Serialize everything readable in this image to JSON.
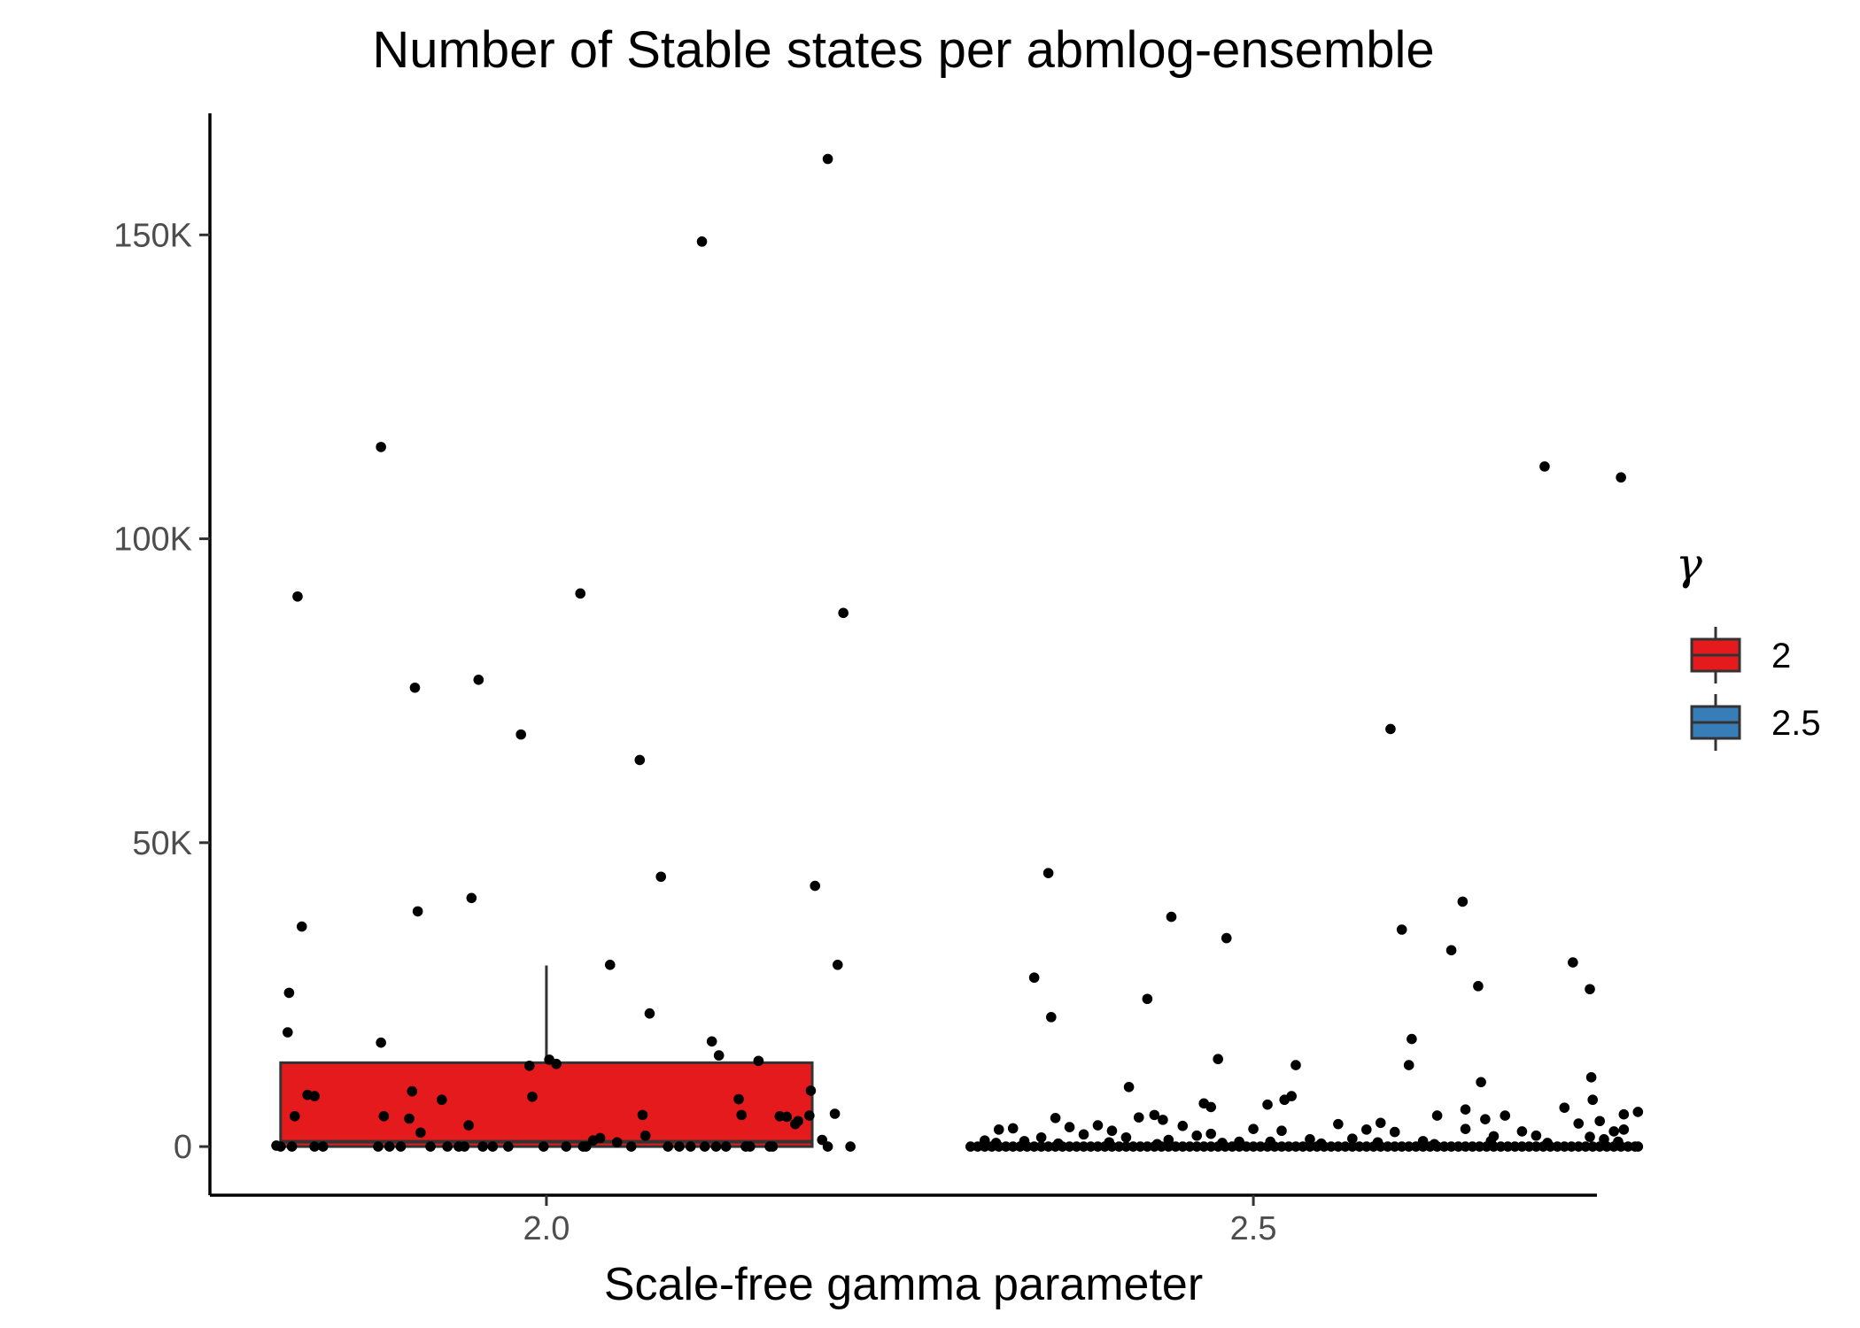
{
  "chart_data": {
    "type": "box",
    "title": "Number of Stable states per abmlog-ensemble",
    "xlabel": "Scale-free gamma parameter",
    "ylabel": "",
    "x_ticks": [
      "2.0",
      "2.5"
    ],
    "x_tick_values": [
      2.0,
      2.5
    ],
    "xlim": [
      1.762,
      2.743
    ],
    "y_ticks": [
      "0",
      "50K",
      "100K",
      "150K"
    ],
    "y_tick_values": [
      0,
      50000,
      100000,
      150000
    ],
    "ylim": [
      -8000,
      170000
    ],
    "grid": false,
    "legend": {
      "title": "γ",
      "position": "right",
      "entries": [
        {
          "label": "2",
          "color": "#e41a1c"
        },
        {
          "label": "2.5",
          "color": "#377eb8"
        }
      ]
    },
    "boxes": [
      {
        "group": "2",
        "x": 2.0,
        "q1": 0,
        "median": 800,
        "q3": 13800,
        "whisker_low": 0,
        "whisker_high": 29800,
        "color": "#e41a1c"
      },
      {
        "group": "2.5",
        "x": 2.5,
        "q1": 0,
        "median": 0,
        "q3": 0,
        "whisker_low": 0,
        "whisker_high": 0,
        "color": "#377eb8"
      }
    ],
    "series": [
      {
        "group": "2",
        "points": [
          [
            1.809,
            162
          ],
          [
            1.817,
            18800
          ],
          [
            1.818,
            25300
          ],
          [
            1.824,
            90500
          ],
          [
            1.827,
            36200
          ],
          [
            1.822,
            5000
          ],
          [
            1.831,
            8500
          ],
          [
            1.836,
            8300
          ],
          [
            1.842,
            0
          ],
          [
            1.812,
            0
          ],
          [
            1.82,
            0
          ],
          [
            1.836,
            0
          ],
          [
            1.883,
            115100
          ],
          [
            1.883,
            17100
          ],
          [
            1.885,
            5000
          ],
          [
            1.881,
            0
          ],
          [
            1.889,
            0
          ],
          [
            1.897,
            0
          ],
          [
            1.907,
            75500
          ],
          [
            1.909,
            38700
          ],
          [
            1.905,
            9100
          ],
          [
            1.903,
            4600
          ],
          [
            1.911,
            2300
          ],
          [
            1.918,
            0
          ],
          [
            1.926,
            7700
          ],
          [
            1.938,
            0
          ],
          [
            1.945,
            3500
          ],
          [
            1.947,
            40900
          ],
          [
            1.952,
            76800
          ],
          [
            1.955,
            0
          ],
          [
            1.962,
            0
          ],
          [
            1.942,
            0
          ],
          [
            1.982,
            67800
          ],
          [
            1.988,
            13300
          ],
          [
            1.99,
            8200
          ],
          [
            1.998,
            0
          ],
          [
            2.002,
            14300
          ],
          [
            2.007,
            13600
          ],
          [
            2.024,
            91000
          ],
          [
            2.026,
            0
          ],
          [
            2.028,
            0
          ],
          [
            2.033,
            1000
          ],
          [
            2.038,
            1400
          ],
          [
            2.045,
            29900
          ],
          [
            2.05,
            700
          ],
          [
            2.066,
            63600
          ],
          [
            2.068,
            5200
          ],
          [
            2.07,
            1800
          ],
          [
            2.073,
            21900
          ],
          [
            2.081,
            44400
          ],
          [
            2.086,
            0
          ],
          [
            2.094,
            0
          ],
          [
            2.11,
            148900
          ],
          [
            2.112,
            0
          ],
          [
            2.117,
            17300
          ],
          [
            2.122,
            15000
          ],
          [
            2.127,
            0
          ],
          [
            2.136,
            7800
          ],
          [
            2.138,
            5200
          ],
          [
            2.141,
            0
          ],
          [
            2.15,
            14100
          ],
          [
            2.158,
            0
          ],
          [
            2.165,
            5000
          ],
          [
            2.17,
            4900
          ],
          [
            2.176,
            3700
          ],
          [
            2.186,
            5100
          ],
          [
            2.187,
            9200
          ],
          [
            2.19,
            42900
          ],
          [
            2.195,
            1100
          ],
          [
            2.199,
            0
          ],
          [
            2.204,
            5400
          ],
          [
            2.206,
            29900
          ],
          [
            2.21,
            87800
          ],
          [
            2.215,
            0
          ],
          [
            2.199,
            162500
          ],
          [
            2.178,
            4200
          ],
          [
            2.16,
            0
          ],
          [
            2.144,
            0
          ],
          [
            2.12,
            0
          ],
          [
            2.102,
            0
          ],
          [
            2.06,
            0
          ],
          [
            2.014,
            0
          ],
          [
            1.973,
            0
          ],
          [
            1.93,
            0
          ]
        ]
      },
      {
        "group": "2.5",
        "points": [
          [
            2.345,
            27800
          ],
          [
            2.355,
            45000
          ],
          [
            2.357,
            21300
          ],
          [
            2.425,
            24300
          ],
          [
            2.412,
            9800
          ],
          [
            2.43,
            5200
          ],
          [
            2.436,
            4400
          ],
          [
            2.419,
            4800
          ],
          [
            2.442,
            37800
          ],
          [
            2.465,
            7100
          ],
          [
            2.47,
            6500
          ],
          [
            2.475,
            14400
          ],
          [
            2.481,
            34300
          ],
          [
            2.5,
            2900
          ],
          [
            2.51,
            6900
          ],
          [
            2.522,
            7700
          ],
          [
            2.53,
            13400
          ],
          [
            2.527,
            8300
          ],
          [
            2.59,
            3900
          ],
          [
            2.597,
            68700
          ],
          [
            2.605,
            35700
          ],
          [
            2.61,
            13400
          ],
          [
            2.612,
            17700
          ],
          [
            2.63,
            5100
          ],
          [
            2.64,
            32300
          ],
          [
            2.648,
            40300
          ],
          [
            2.65,
            6100
          ],
          [
            2.659,
            26400
          ],
          [
            2.661,
            10600
          ],
          [
            2.664,
            4500
          ],
          [
            2.678,
            5100
          ],
          [
            2.706,
            111900
          ],
          [
            2.72,
            6400
          ],
          [
            2.726,
            30300
          ],
          [
            2.738,
            25900
          ],
          [
            2.739,
            11400
          ],
          [
            2.74,
            7700
          ],
          [
            2.76,
            110100
          ],
          [
            2.762,
            2800
          ],
          [
            2.772,
            5700
          ],
          [
            2.762,
            5300
          ],
          [
            2.69,
            2500
          ],
          [
            2.7,
            1800
          ],
          [
            2.58,
            2800
          ],
          [
            2.56,
            3700
          ],
          [
            2.54,
            1200
          ],
          [
            2.47,
            2100
          ],
          [
            2.45,
            3400
          ],
          [
            2.4,
            2600
          ],
          [
            2.39,
            3500
          ],
          [
            2.38,
            2000
          ],
          [
            2.37,
            3200
          ],
          [
            2.36,
            4700
          ],
          [
            2.35,
            1500
          ],
          [
            2.33,
            3000
          ],
          [
            2.32,
            2800
          ],
          [
            2.31,
            1000
          ],
          [
            2.41,
            1500
          ],
          [
            2.46,
            1800
          ],
          [
            2.52,
            2600
          ],
          [
            2.6,
            2400
          ],
          [
            2.65,
            2900
          ],
          [
            2.67,
            1700
          ],
          [
            2.73,
            3800
          ],
          [
            2.745,
            4200
          ],
          [
            2.755,
            2500
          ],
          [
            2.62,
            900
          ],
          [
            2.57,
            1300
          ],
          [
            2.49,
            800
          ],
          [
            2.44,
            1100
          ],
          [
            2.3,
            0
          ],
          [
            2.31,
            0
          ],
          [
            2.32,
            0
          ],
          [
            2.33,
            0
          ],
          [
            2.34,
            0
          ],
          [
            2.35,
            0
          ],
          [
            2.36,
            0
          ],
          [
            2.37,
            0
          ],
          [
            2.38,
            0
          ],
          [
            2.39,
            0
          ],
          [
            2.4,
            0
          ],
          [
            2.41,
            0
          ],
          [
            2.42,
            0
          ],
          [
            2.43,
            0
          ],
          [
            2.44,
            0
          ],
          [
            2.45,
            0
          ],
          [
            2.46,
            0
          ],
          [
            2.47,
            0
          ],
          [
            2.48,
            0
          ],
          [
            2.49,
            0
          ],
          [
            2.5,
            0
          ],
          [
            2.51,
            0
          ],
          [
            2.52,
            0
          ],
          [
            2.53,
            0
          ],
          [
            2.54,
            0
          ],
          [
            2.55,
            0
          ],
          [
            2.56,
            0
          ],
          [
            2.57,
            0
          ],
          [
            2.58,
            0
          ],
          [
            2.59,
            0
          ],
          [
            2.6,
            0
          ],
          [
            2.61,
            0
          ],
          [
            2.62,
            0
          ],
          [
            2.63,
            0
          ],
          [
            2.64,
            0
          ],
          [
            2.65,
            0
          ],
          [
            2.66,
            0
          ],
          [
            2.67,
            0
          ],
          [
            2.68,
            0
          ],
          [
            2.69,
            0
          ],
          [
            2.7,
            0
          ],
          [
            2.71,
            0
          ],
          [
            2.72,
            0
          ],
          [
            2.73,
            0
          ],
          [
            2.74,
            0
          ],
          [
            2.75,
            0
          ],
          [
            2.76,
            0
          ],
          [
            2.77,
            0
          ],
          [
            2.305,
            0
          ],
          [
            2.315,
            0
          ],
          [
            2.325,
            0
          ],
          [
            2.335,
            0
          ],
          [
            2.345,
            0
          ],
          [
            2.355,
            0
          ],
          [
            2.365,
            0
          ],
          [
            2.375,
            0
          ],
          [
            2.385,
            0
          ],
          [
            2.395,
            0
          ],
          [
            2.405,
            0
          ],
          [
            2.415,
            0
          ],
          [
            2.425,
            0
          ],
          [
            2.435,
            0
          ],
          [
            2.445,
            0
          ],
          [
            2.455,
            0
          ],
          [
            2.465,
            0
          ],
          [
            2.475,
            0
          ],
          [
            2.485,
            0
          ],
          [
            2.495,
            0
          ],
          [
            2.505,
            0
          ],
          [
            2.515,
            0
          ],
          [
            2.525,
            0
          ],
          [
            2.535,
            0
          ],
          [
            2.545,
            0
          ],
          [
            2.555,
            0
          ],
          [
            2.565,
            0
          ],
          [
            2.575,
            0
          ],
          [
            2.585,
            0
          ],
          [
            2.595,
            0
          ],
          [
            2.605,
            0
          ],
          [
            2.615,
            0
          ],
          [
            2.625,
            0
          ],
          [
            2.635,
            0
          ],
          [
            2.645,
            0
          ],
          [
            2.655,
            0
          ],
          [
            2.665,
            0
          ],
          [
            2.675,
            0
          ],
          [
            2.685,
            0
          ],
          [
            2.695,
            0
          ],
          [
            2.705,
            0
          ],
          [
            2.715,
            0
          ],
          [
            2.725,
            0
          ],
          [
            2.735,
            0
          ],
          [
            2.745,
            0
          ],
          [
            2.755,
            0
          ],
          [
            2.765,
            0
          ],
          [
            2.772,
            0
          ],
          [
            2.318,
            600
          ],
          [
            2.338,
            900
          ],
          [
            2.362,
            500
          ],
          [
            2.398,
            700
          ],
          [
            2.432,
            400
          ],
          [
            2.478,
            600
          ],
          [
            2.512,
            800
          ],
          [
            2.548,
            500
          ],
          [
            2.588,
            700
          ],
          [
            2.628,
            400
          ],
          [
            2.668,
            900
          ],
          [
            2.708,
            600
          ],
          [
            2.748,
            1200
          ],
          [
            2.758,
            800
          ],
          [
            2.738,
            1600
          ]
        ]
      }
    ]
  }
}
